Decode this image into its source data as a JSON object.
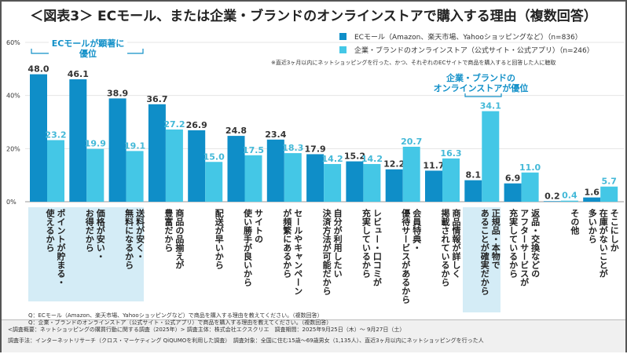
{
  "title": "＜図表3＞ ECモール、または企業・ブランドのオンラインストアで購入する理由（複数回答）",
  "legend": [
    "ECモール（Amazon、楽天市場、Yahooショッピングなど）（n=836）",
    "企業・ブランドのオンラインストア（公式サイト・公式アプリ）（n=246）"
  ],
  "note": "※直近3ヶ月以内にネットショッピングを行った、かつ、それぞれのECサイトで商品を購入すると回答した人に聴取",
  "annotations": [
    "ECモールが顕著に優位",
    "企業・ブランドの\nオンラインストアが優位"
  ],
  "questions": [
    "Q：ECモール（Amazon、楽天市場、Yahooショッピングなど）で商品を購入する理由を教えてください。（複数回答）",
    "Q：企業・ブランドのオンラインストア（公式サイト・公式アプリ）で商品を購入する理由を教えてください。（複数回答）"
  ],
  "footer": [
    "<調査概要：ネットショッピングの購買行動に関する調査（2025年）> 調査主体：株式会社エクスクリエ　調査期間：2025年9月25日（木）～ 9月27日（土）",
    "調査手法：インターネットリサーチ（クロス・マーケティング QiQUMOを利用した調査）　調査対象：全国に住む15歳～69歳男女（1,135人）、直近3ヶ月以内にネットショッピングを行った人"
  ],
  "colors": {
    "ec": "#0f8ec8",
    "corp": "#44c7e6",
    "accent": "#1290c8"
  },
  "chart_data": {
    "type": "bar",
    "title": "ECモール、または企業・ブランドのオンラインストアで購入する理由（複数回答）",
    "ylim": [
      0,
      60
    ],
    "yticks": [
      "0%",
      "20%",
      "40%",
      "60%"
    ],
    "categories": [
      "ポイントが貯まる・\n使えるから",
      "価格が安い・\nお得だから",
      "送料が安く・\n無料になるから",
      "商品の品揃えが\n豊富だから",
      "配送が早いから",
      "サイトの\n使い勝手が良いから",
      "セールやキャンペーン\nが頻繁にあるから",
      "自分が利用したい\n決済方法が可能だから",
      "レビュー・口コミが\n充実しているから",
      "会員特典・\n優待サービスがあるから",
      "商品情報が詳しく\n掲載されているから",
      "正規品・本物で\nあることが確実だから",
      "返品・交換などの\nアフターサービスが\n充実しているから",
      "その他",
      "そこにしか\n在庫がないことが\n多いから"
    ],
    "series": [
      {
        "name": "ECモール（n=836）",
        "values": [
          48.0,
          46.1,
          38.9,
          36.7,
          26.9,
          24.8,
          23.4,
          17.9,
          15.2,
          12.2,
          11.7,
          8.1,
          6.9,
          0.2,
          1.6
        ]
      },
      {
        "name": "企業・ブランドのオンラインストア（n=246）",
        "values": [
          23.2,
          19.9,
          19.1,
          27.2,
          15.0,
          17.5,
          18.3,
          14.2,
          14.2,
          20.7,
          16.3,
          34.1,
          11.0,
          0.4,
          5.7
        ]
      }
    ]
  }
}
